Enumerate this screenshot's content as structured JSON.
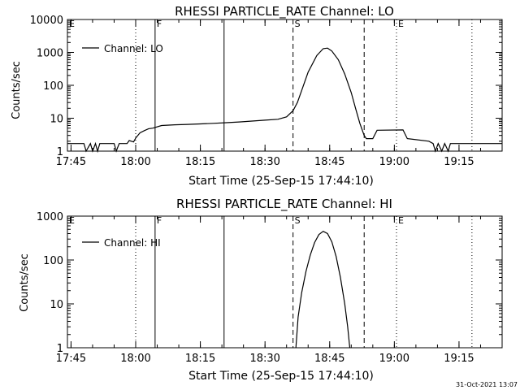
{
  "footer_date": "31-Oct-2021 13:07",
  "chart_data": [
    {
      "type": "line",
      "title": "RHESSI PARTICLE_RATE Channel: LO",
      "xlabel": "Start Time (25-Sep-15 17:44:10)",
      "ylabel": "Counts/sec",
      "yscale": "log",
      "ylim": [
        1,
        10000
      ],
      "xlim": [
        "17:44:10",
        "19:25:00"
      ],
      "xticks": [
        "17:45",
        "18:00",
        "18:15",
        "18:30",
        "18:45",
        "19:00",
        "19:15"
      ],
      "yticks": [
        "1",
        "10",
        "100",
        "1000",
        "10000"
      ],
      "legend": "Channel: LO",
      "series": [
        {
          "name": "Channel: LO",
          "points": [
            [
              "17:44:10",
              1.7
            ],
            [
              "17:48:00",
              1.7
            ],
            [
              "17:48:30",
              1
            ],
            [
              "17:49:30",
              1.7
            ],
            [
              "17:50:00",
              1
            ],
            [
              "17:50:40",
              1.7
            ],
            [
              "17:51:10",
              1
            ],
            [
              "17:51:40",
              1.7
            ],
            [
              "17:55:00",
              1.7
            ],
            [
              "17:55:30",
              1
            ],
            [
              "17:56:10",
              1.7
            ],
            [
              "17:58:00",
              1.7
            ],
            [
              "17:58:30",
              2.1
            ],
            [
              "17:59:30",
              1.9
            ],
            [
              "18:00:00",
              2.5
            ],
            [
              "18:01:00",
              3.6
            ],
            [
              "18:02:00",
              4.2
            ],
            [
              "18:03:00",
              4.8
            ],
            [
              "18:04:00",
              5.0
            ],
            [
              "18:06:00",
              6.0
            ],
            [
              "18:09:00",
              6.3
            ],
            [
              "18:12:00",
              6.5
            ],
            [
              "18:15:00",
              6.7
            ],
            [
              "18:18:00",
              7.0
            ],
            [
              "18:21:00",
              7.3
            ],
            [
              "18:24:00",
              7.7
            ],
            [
              "18:27:00",
              8.2
            ],
            [
              "18:30:00",
              8.7
            ],
            [
              "18:33:00",
              9.3
            ],
            [
              "18:35:00",
              11
            ],
            [
              "18:36:30",
              17
            ],
            [
              "18:37:30",
              30
            ],
            [
              "18:38:30",
              70
            ],
            [
              "18:40:00",
              250
            ],
            [
              "18:42:00",
              800
            ],
            [
              "18:43:30",
              1300
            ],
            [
              "18:44:30",
              1350
            ],
            [
              "18:45:30",
              1100
            ],
            [
              "18:47:00",
              600
            ],
            [
              "18:48:30",
              220
            ],
            [
              "18:50:00",
              60
            ],
            [
              "18:51:00",
              20
            ],
            [
              "18:52:00",
              7
            ],
            [
              "18:53:00",
              3
            ],
            [
              "18:53:30",
              2.4
            ],
            [
              "18:55:00",
              2.4
            ],
            [
              "18:56:00",
              4.3
            ],
            [
              "19:02:00",
              4.4
            ],
            [
              "19:03:00",
              2.4
            ],
            [
              "19:08:00",
              2.0
            ],
            [
              "19:09:00",
              1.7
            ],
            [
              "19:09:30",
              1
            ],
            [
              "19:10:10",
              1.7
            ],
            [
              "19:11:00",
              1
            ],
            [
              "19:11:40",
              1.7
            ],
            [
              "19:12:30",
              1
            ],
            [
              "19:13:00",
              1.7
            ],
            [
              "19:25:00",
              1.7
            ]
          ]
        }
      ],
      "markers": [
        {
          "label": "E",
          "time": "17:44:10",
          "style": "dotted",
          "letter_only": true
        },
        {
          "label": "",
          "time": "18:00:00",
          "style": "dotted"
        },
        {
          "label": "F",
          "time": "18:04:30",
          "style": "solid"
        },
        {
          "label": "",
          "time": "18:20:30",
          "style": "solid"
        },
        {
          "label": "S",
          "time": "18:36:30",
          "style": "dashed"
        },
        {
          "label": "",
          "time": "18:53:00",
          "style": "dashed"
        },
        {
          "label": "E",
          "time": "19:00:30",
          "style": "dotted"
        },
        {
          "label": "",
          "time": "19:18:00",
          "style": "dotted"
        }
      ]
    },
    {
      "type": "line",
      "title": "RHESSI PARTICLE_RATE Channel: HI",
      "xlabel": "Start Time (25-Sep-15 17:44:10)",
      "ylabel": "Counts/sec",
      "yscale": "log",
      "ylim": [
        1,
        1000
      ],
      "xlim": [
        "17:44:10",
        "19:25:00"
      ],
      "xticks": [
        "17:45",
        "18:00",
        "18:15",
        "18:30",
        "18:45",
        "19:00",
        "19:15"
      ],
      "yticks": [
        "1",
        "10",
        "100",
        "1000"
      ],
      "legend": "Channel: HI",
      "series": [
        {
          "name": "Channel: HI",
          "points": [
            [
              "18:37:10",
              1
            ],
            [
              "18:37:40",
              5
            ],
            [
              "18:38:30",
              18
            ],
            [
              "18:39:30",
              55
            ],
            [
              "18:40:30",
              130
            ],
            [
              "18:41:30",
              250
            ],
            [
              "18:42:30",
              380
            ],
            [
              "18:43:30",
              450
            ],
            [
              "18:44:30",
              400
            ],
            [
              "18:45:30",
              260
            ],
            [
              "18:46:30",
              120
            ],
            [
              "18:47:30",
              40
            ],
            [
              "18:48:30",
              10
            ],
            [
              "18:49:10",
              3
            ],
            [
              "18:49:40",
              1
            ]
          ]
        }
      ],
      "markers": [
        {
          "label": "E",
          "time": "17:44:10",
          "style": "dotted",
          "letter_only": true
        },
        {
          "label": "",
          "time": "18:00:00",
          "style": "dotted"
        },
        {
          "label": "F",
          "time": "18:04:30",
          "style": "solid"
        },
        {
          "label": "",
          "time": "18:20:30",
          "style": "solid"
        },
        {
          "label": "S",
          "time": "18:36:30",
          "style": "dashed"
        },
        {
          "label": "",
          "time": "18:53:00",
          "style": "dashed"
        },
        {
          "label": "E",
          "time": "19:00:30",
          "style": "dotted"
        },
        {
          "label": "",
          "time": "19:18:00",
          "style": "dotted"
        }
      ]
    }
  ]
}
